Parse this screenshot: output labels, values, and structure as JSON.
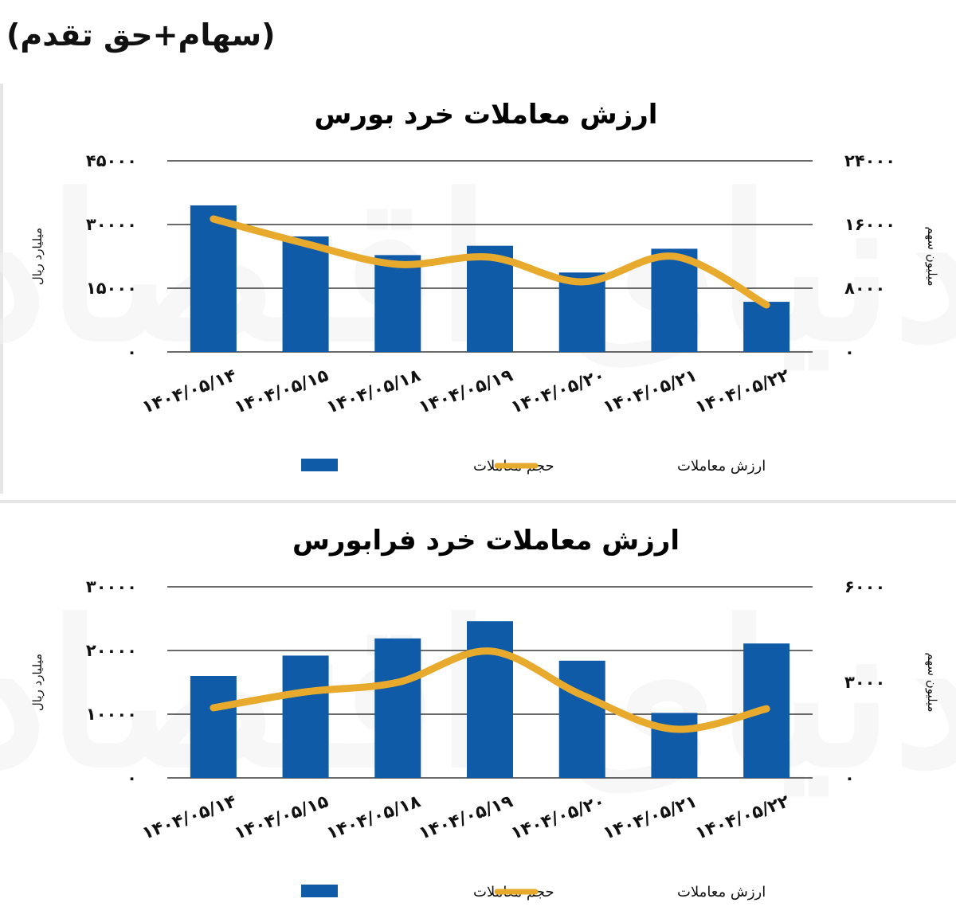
{
  "header_note": "(سهام+حق تقدم)",
  "watermark_text": "دنیای اقتصاد",
  "colors": {
    "bar": "#0f5ba8",
    "line": "#e8aa2c",
    "grid": "#111111"
  },
  "chart_data": [
    {
      "type": "bar",
      "title": "ارزش معاملات خرد بورس",
      "categories": [
        "۱۴۰۴/۰۵/۱۴",
        "۱۴۰۴/۰۵/۱۵",
        "۱۴۰۴/۰۵/۱۸",
        "۱۴۰۴/۰۵/۱۹",
        "۱۴۰۴/۰۵/۲۰",
        "۱۴۰۴/۰۵/۲۱",
        "۱۴۰۴/۰۵/۲۲"
      ],
      "ylabel": "میلیارد ریال",
      "ylabel_right": "میلیون سهم",
      "ylim": [
        0,
        45000
      ],
      "ylim_right": [
        0,
        24000
      ],
      "yticks": [
        0,
        15000,
        30000,
        45000
      ],
      "yticks_labels": [
        "0",
        "15000",
        "30000",
        "45000"
      ],
      "yticks_right": [
        0,
        8000,
        16000,
        24000
      ],
      "yticks_right_labels": [
        "0",
        "8000",
        "16000",
        "24000"
      ],
      "grid": true,
      "legend_position": "bottom",
      "series": [
        {
          "name": "حجم معاملات",
          "kind": "bar",
          "axis": "left",
          "values": [
            34500,
            27200,
            22800,
            25000,
            18700,
            24300,
            11800
          ]
        },
        {
          "name": "ارزش معاملات",
          "kind": "line",
          "axis": "right",
          "values": [
            16700,
            13600,
            11000,
            11900,
            8800,
            12000,
            5900
          ]
        }
      ]
    },
    {
      "type": "bar",
      "title": "ارزش معاملات خرد فرابورس",
      "categories": [
        "۱۴۰۴/۰۵/۱۴",
        "۱۴۰۴/۰۵/۱۵",
        "۱۴۰۴/۰۵/۱۸",
        "۱۴۰۴/۰۵/۱۹",
        "۱۴۰۴/۰۵/۲۰",
        "۱۴۰۴/۰۵/۲۱",
        "۱۴۰۴/۰۵/۲۲"
      ],
      "ylabel": "میلیارد ریال",
      "ylabel_right": "میلیون سهم",
      "ylim": [
        0,
        30000
      ],
      "ylim_right": [
        0,
        6000
      ],
      "yticks": [
        0,
        10000,
        20000,
        30000
      ],
      "yticks_labels": [
        "0",
        "10000",
        "20000",
        "30000"
      ],
      "yticks_right": [
        0,
        3000,
        6000
      ],
      "yticks_right_labels": [
        "0",
        "3000",
        "6000"
      ],
      "grid": true,
      "legend_position": "bottom",
      "series": [
        {
          "name": "حجم معاملات",
          "kind": "bar",
          "axis": "left",
          "values": [
            16000,
            19200,
            21900,
            24600,
            18400,
            10200,
            21100
          ]
        },
        {
          "name": "ارزش معاملات",
          "kind": "line",
          "axis": "right",
          "values": [
            2200,
            2700,
            3000,
            3980,
            2600,
            1530,
            2170
          ]
        }
      ]
    }
  ]
}
